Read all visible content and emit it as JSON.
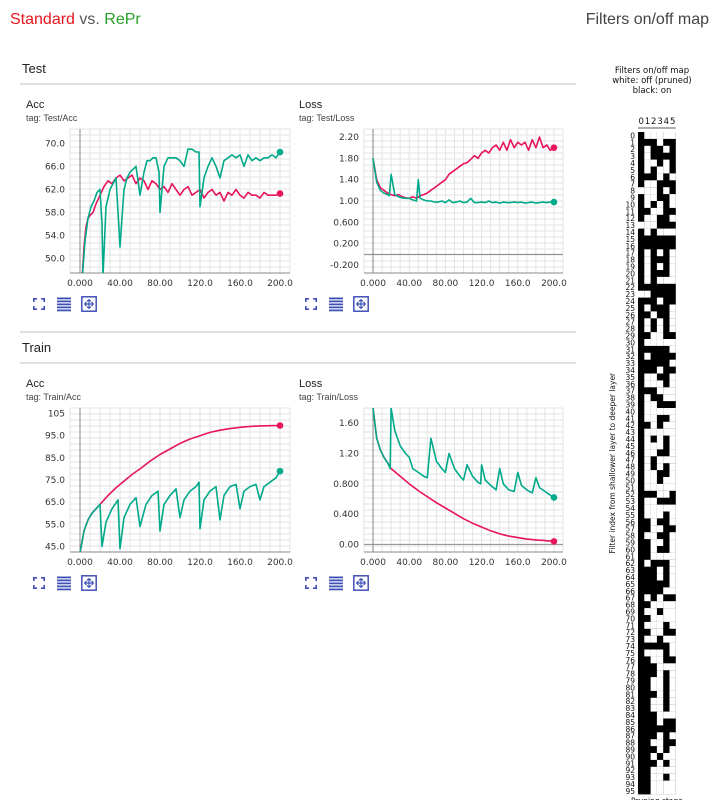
{
  "header": {
    "standard_label": "Standard",
    "vs_label": " vs. ",
    "repr_label": "RePr",
    "right_title": "Filters on/off map"
  },
  "colors": {
    "standard": "#e7145f",
    "repr": "#00a98a",
    "title_standard": "#e8141b",
    "title_repr": "#2aa02a"
  },
  "sections": [
    {
      "name": "Test"
    },
    {
      "name": "Train"
    }
  ],
  "buttons": [
    "expand-icon",
    "data-table-icon",
    "fit-domain-icon"
  ],
  "chart_data": [
    {
      "type": "line",
      "name": "Acc",
      "tag": "tag: Test/Acc",
      "xlim": [
        -10,
        210
      ],
      "ylim": [
        47.5,
        72.5
      ],
      "xticks": [
        0,
        40,
        80,
        120,
        160,
        200
      ],
      "xtick_labels": [
        "0.000",
        "40.00",
        "80.00",
        "120.0",
        "160.0",
        "200.0"
      ],
      "yticks": [
        50,
        54,
        58,
        62,
        66,
        70
      ],
      "ytick_labels": [
        "50.0",
        "54.0",
        "58.0",
        "62.0",
        "66.0",
        "70.0"
      ],
      "series": [
        {
          "key": "standard",
          "x": [
            2,
            4,
            6,
            8,
            10,
            13,
            16,
            20,
            24,
            28,
            32,
            36,
            40,
            44,
            48,
            52,
            56,
            60,
            64,
            68,
            72,
            76,
            80,
            84,
            88,
            92,
            96,
            100,
            104,
            108,
            112,
            116,
            120,
            124,
            128,
            132,
            136,
            140,
            144,
            148,
            152,
            156,
            160,
            164,
            168,
            172,
            176,
            180,
            184,
            188,
            192,
            196,
            200
          ],
          "values": [
            46,
            52,
            55.5,
            57,
            57.5,
            58,
            59.5,
            61,
            62.5,
            63.5,
            63,
            64,
            64.5,
            63.5,
            64,
            64.5,
            63,
            64,
            63.5,
            62,
            63.5,
            63,
            62,
            62.5,
            61.5,
            63,
            62,
            61,
            62,
            62.5,
            61,
            61.5,
            62,
            60.5,
            61.5,
            62,
            61,
            61.5,
            60,
            61.5,
            61,
            62,
            61,
            60.5,
            61.5,
            61,
            61,
            60.5,
            61.5,
            61,
            61,
            61,
            61.3
          ]
        },
        {
          "key": "repr",
          "x": [
            2,
            5,
            8,
            11,
            14,
            17,
            20,
            22,
            23,
            26,
            30,
            33,
            36,
            40,
            44,
            47,
            50,
            53,
            56,
            60,
            64,
            67,
            70,
            73,
            76,
            79,
            80,
            84,
            88,
            92,
            96,
            100,
            104,
            108,
            112,
            116,
            119,
            120,
            124,
            128,
            132,
            136,
            140,
            144,
            148,
            152,
            156,
            160,
            164,
            168,
            172,
            176,
            180,
            184,
            188,
            192,
            196,
            200
          ],
          "values": [
            46,
            53,
            57,
            59,
            60,
            61.5,
            62,
            56,
            47,
            59,
            62,
            63,
            64,
            52,
            62,
            64,
            65,
            65.5,
            66,
            61,
            65,
            67,
            67,
            67.5,
            67.5,
            65,
            58,
            66,
            67.5,
            67.5,
            67.5,
            67,
            66,
            69,
            69,
            68.5,
            68.5,
            59,
            64,
            66,
            67.5,
            66,
            64,
            67,
            67.5,
            68,
            67.5,
            68,
            66,
            68,
            67,
            67.5,
            67,
            67.5,
            67.5,
            68,
            67.5,
            68.5
          ]
        }
      ]
    },
    {
      "type": "line",
      "name": "Loss",
      "tag": "tag: Test/Loss",
      "xlim": [
        -10,
        210
      ],
      "ylim": [
        -0.35,
        2.35
      ],
      "xticks": [
        0,
        40,
        80,
        120,
        160,
        200
      ],
      "xtick_labels": [
        "0.000",
        "40.00",
        "80.00",
        "120.0",
        "160.0",
        "200.0"
      ],
      "yticks": [
        -0.2,
        0.2,
        0.6,
        1.0,
        1.4,
        1.8,
        2.2
      ],
      "ytick_labels": [
        "-0.200",
        "0.200",
        "0.600",
        "1.00",
        "1.40",
        "1.80",
        "2.20"
      ],
      "series": [
        {
          "key": "standard",
          "x": [
            0,
            4,
            8,
            12,
            16,
            20,
            24,
            28,
            32,
            36,
            40,
            44,
            48,
            52,
            56,
            60,
            64,
            68,
            72,
            76,
            80,
            84,
            88,
            92,
            96,
            100,
            104,
            108,
            112,
            116,
            120,
            124,
            128,
            132,
            136,
            140,
            144,
            148,
            152,
            156,
            160,
            164,
            168,
            172,
            176,
            180,
            184,
            188,
            192,
            196,
            200
          ],
          "values": [
            1.8,
            1.4,
            1.25,
            1.2,
            1.15,
            1.12,
            1.1,
            1.12,
            1.08,
            1.06,
            1.05,
            1.08,
            1.05,
            1.1,
            1.12,
            1.15,
            1.2,
            1.25,
            1.3,
            1.35,
            1.4,
            1.5,
            1.55,
            1.6,
            1.65,
            1.7,
            1.72,
            1.78,
            1.85,
            1.8,
            1.9,
            1.95,
            1.9,
            2.0,
            2.05,
            1.95,
            2.1,
            1.95,
            2.15,
            2.0,
            2.1,
            2.05,
            2.1,
            1.95,
            2.15,
            2.0,
            2.2,
            2.0,
            2.05,
            1.95,
            2.0
          ]
        },
        {
          "key": "repr",
          "x": [
            0,
            4,
            8,
            12,
            16,
            18,
            20,
            24,
            28,
            32,
            36,
            40,
            44,
            48,
            50,
            52,
            56,
            60,
            64,
            68,
            72,
            76,
            80,
            84,
            88,
            92,
            96,
            100,
            104,
            108,
            112,
            116,
            120,
            124,
            128,
            132,
            136,
            140,
            144,
            148,
            152,
            156,
            160,
            164,
            168,
            172,
            176,
            180,
            184,
            188,
            192,
            196,
            200
          ],
          "values": [
            1.8,
            1.35,
            1.2,
            1.15,
            1.12,
            1.1,
            1.5,
            1.12,
            1.08,
            1.06,
            1.05,
            1.05,
            1.02,
            1.0,
            1.4,
            1.05,
            1.02,
            1.0,
            1.0,
            0.98,
            0.98,
            1.0,
            0.97,
            1.02,
            0.97,
            0.98,
            1.0,
            0.97,
            0.98,
            1.05,
            0.97,
            0.97,
            0.98,
            0.97,
            1.0,
            0.97,
            0.98,
            0.96,
            0.98,
            0.97,
            0.97,
            0.98,
            0.97,
            0.98,
            0.96,
            0.97,
            0.98,
            0.96,
            0.97,
            0.98,
            0.97,
            0.98,
            0.98
          ]
        }
      ]
    },
    {
      "type": "line",
      "name": "Acc",
      "tag": "tag: Train/Acc",
      "xlim": [
        -10,
        210
      ],
      "ylim": [
        42.5,
        107.5
      ],
      "xticks": [
        0,
        40,
        80,
        120,
        160,
        200
      ],
      "xtick_labels": [
        "0.000",
        "40.00",
        "80.00",
        "120.0",
        "160.0",
        "200.0"
      ],
      "yticks": [
        45,
        55,
        65,
        75,
        85,
        95,
        105
      ],
      "ytick_labels": [
        "45.0",
        "55.0",
        "65.0",
        "75.0",
        "85.0",
        "95.0",
        "105"
      ],
      "series": [
        {
          "key": "standard",
          "x": [
            0,
            4,
            8,
            12,
            16,
            20,
            28,
            36,
            44,
            52,
            60,
            70,
            80,
            90,
            100,
            110,
            120,
            130,
            140,
            150,
            160,
            170,
            180,
            190,
            200
          ],
          "values": [
            42,
            52,
            57,
            60,
            62,
            64,
            68,
            71.5,
            74.5,
            77.5,
            80,
            83.5,
            86.5,
            89,
            91.5,
            93.5,
            95,
            96.5,
            97.5,
            98.2,
            98.8,
            99.2,
            99.4,
            99.5,
            99.6
          ]
        },
        {
          "key": "repr",
          "x": [
            0,
            4,
            8,
            12,
            16,
            20,
            22,
            26,
            32,
            38,
            40,
            44,
            50,
            56,
            60,
            66,
            72,
            78,
            80,
            84,
            90,
            96,
            100,
            104,
            110,
            116,
            119,
            120,
            124,
            130,
            136,
            140,
            144,
            150,
            156,
            160,
            164,
            170,
            176,
            180,
            184,
            190,
            196,
            200
          ],
          "values": [
            42,
            52,
            57,
            60,
            62,
            64,
            45,
            56,
            62,
            66,
            44,
            58,
            64,
            67,
            54,
            64,
            68,
            70,
            52,
            64,
            68,
            71,
            58,
            66,
            70,
            72,
            74,
            53,
            66,
            70,
            72,
            57,
            68,
            72,
            73,
            62,
            70,
            72,
            73,
            66,
            72,
            74,
            76,
            79
          ]
        }
      ]
    },
    {
      "type": "line",
      "name": "Loss",
      "tag": "tag: Train/Loss",
      "xlim": [
        -10,
        210
      ],
      "ylim": [
        -0.1,
        1.8
      ],
      "xticks": [
        0,
        40,
        80,
        120,
        160,
        200
      ],
      "xtick_labels": [
        "0.000",
        "40.00",
        "80.00",
        "120.0",
        "160.0",
        "200.0"
      ],
      "yticks": [
        0.0,
        0.4,
        0.8,
        1.2,
        1.6
      ],
      "ytick_labels": [
        "0.00",
        "0.400",
        "0.800",
        "1.20",
        "1.60"
      ],
      "series": [
        {
          "key": "standard",
          "x": [
            0,
            4,
            8,
            12,
            16,
            20,
            30,
            40,
            50,
            60,
            70,
            80,
            90,
            100,
            110,
            120,
            130,
            140,
            150,
            160,
            170,
            180,
            190,
            200
          ],
          "values": [
            1.8,
            1.4,
            1.25,
            1.15,
            1.08,
            1.0,
            0.9,
            0.8,
            0.71,
            0.63,
            0.55,
            0.48,
            0.41,
            0.34,
            0.28,
            0.23,
            0.18,
            0.14,
            0.11,
            0.09,
            0.07,
            0.06,
            0.05,
            0.04
          ]
        },
        {
          "key": "repr",
          "x": [
            0,
            4,
            8,
            12,
            16,
            19,
            20,
            24,
            30,
            36,
            40,
            44,
            50,
            56,
            60,
            64,
            70,
            76,
            80,
            84,
            90,
            96,
            100,
            104,
            110,
            116,
            119,
            120,
            124,
            130,
            136,
            140,
            144,
            150,
            156,
            160,
            164,
            170,
            176,
            180,
            184,
            190,
            196,
            200
          ],
          "values": [
            1.8,
            1.4,
            1.25,
            1.15,
            1.08,
            1.0,
            1.8,
            1.5,
            1.3,
            1.2,
            1.15,
            1.0,
            0.95,
            0.9,
            0.88,
            1.4,
            1.1,
            1.0,
            0.95,
            1.2,
            1.0,
            0.9,
            0.85,
            1.05,
            0.9,
            0.82,
            0.8,
            1.05,
            0.85,
            0.78,
            0.72,
            1.0,
            0.8,
            0.72,
            0.7,
            0.95,
            0.78,
            0.72,
            0.68,
            0.88,
            0.75,
            0.7,
            0.65,
            0.62
          ]
        }
      ]
    },
    {
      "type": "heatmap",
      "title_lines": [
        "Filters on/off map",
        "white: off (pruned)",
        "black: on"
      ],
      "ylabel": "Filter index from shallower layer to deeper layer",
      "xlabel": "Pruning stage",
      "x_labels": [
        "0",
        "1",
        "2",
        "3",
        "4",
        "5"
      ],
      "y_labels": [
        "0",
        "1",
        "2",
        "3",
        "4",
        "5",
        "6",
        "7",
        "8",
        "9",
        "10",
        "11",
        "12",
        "13",
        "14",
        "15",
        "16",
        "17",
        "18",
        "19",
        "20",
        "21",
        "22",
        "23",
        "24",
        "25",
        "26",
        "27",
        "28",
        "29",
        "30",
        "31",
        "32",
        "33",
        "34",
        "35",
        "36",
        "37",
        "38",
        "39",
        "40",
        "41",
        "42",
        "43",
        "44",
        "45",
        "46",
        "47",
        "48",
        "49",
        "50",
        "51",
        "52",
        "53",
        "54",
        "55",
        "56",
        "57",
        "58",
        "59",
        "60",
        "61",
        "62",
        "63",
        "64",
        "65",
        "66",
        "67",
        "68",
        "69",
        "70",
        "71",
        "72",
        "73",
        "74",
        "75",
        "76",
        "77",
        "78",
        "79",
        "80",
        "81",
        "82",
        "83",
        "84",
        "85",
        "86",
        "87",
        "88",
        "89",
        "90",
        "91",
        "92",
        "93",
        "94",
        "95"
      ],
      "legend": {
        "white": "off (pruned)",
        "black": "on"
      },
      "rows": [
        "011111",
        "000100",
        "010010",
        "010000",
        "011010",
        "010110",
        "000101",
        "011000",
        "111010",
        "011001",
        "010101",
        "001100",
        "011001",
        "111000",
        "010111",
        "000000",
        "000000",
        "010101",
        "010001",
        "010101",
        "010001",
        "010111",
        "000000",
        "110000",
        "000100",
        "010001",
        "001001",
        "010101",
        "010101",
        "001100",
        "011111",
        "000001",
        "010000",
        "000001",
        "000100",
        "011001",
        "011101",
        "000111",
        "010011",
        "011000",
        "011111",
        "011001",
        "001011",
        "011111",
        "010101",
        "011101",
        "011001",
        "010111",
        "010101",
        "011001",
        "011011",
        "011111",
        "000110",
        "011000",
        "011111",
        "011101",
        "001001",
        "001100",
        "011001",
        "001101",
        "001001",
        "001111",
        "010001",
        "000101",
        "000101",
        "000001",
        "000011",
        "010100",
        "001111",
        "011011",
        "001111",
        "011101",
        "001100",
        "011011",
        "000001",
        "011101",
        "001100",
        "000111",
        "000101",
        "001101",
        "001101",
        "000101",
        "001101",
        "001101",
        "000111",
        "000100",
        "000000",
        "000101",
        "001100",
        "000101",
        "001011",
        "000101",
        "001111",
        "001101",
        "001111",
        "001111"
      ]
    }
  ]
}
